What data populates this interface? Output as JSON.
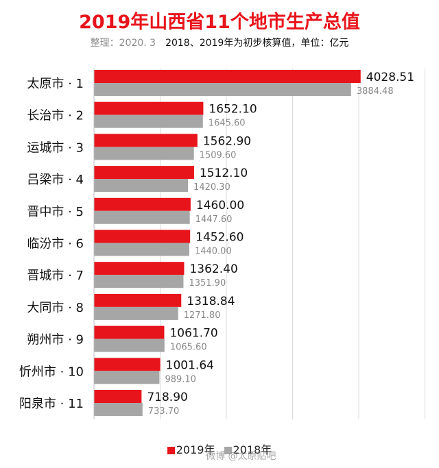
{
  "title": "2019年山西省11个地市生产总值",
  "subtitle_note": "整理：2020. 3",
  "subtitle": "2018、2019年为初步核算值，单位：亿元",
  "watermark": "微博 @太原贴吧",
  "colors": {
    "series_2019": "#e8141b",
    "series_2018": "#a6a6a6",
    "grid": "#d9d9d9",
    "title": "#e8141b"
  },
  "chart_data": {
    "type": "bar",
    "orientation": "horizontal",
    "categories": [
      "太原市 · 1",
      "长治市 · 2",
      "运城市 · 3",
      "吕梁市 · 4",
      "晋中市 · 5",
      "临汾市 · 6",
      "晋城市 · 7",
      "大同市 · 8",
      "朔州市 · 9",
      "忻州市 · 10",
      "阳泉市 · 11"
    ],
    "series": [
      {
        "name": "2019年",
        "values": [
          4028.51,
          1652.1,
          1562.9,
          1512.1,
          1460.0,
          1452.6,
          1362.4,
          1318.84,
          1061.7,
          1001.64,
          718.9
        ],
        "labels": [
          "4028.51",
          "1652.10",
          "1562.90",
          "1512.10",
          "1460.00",
          "1452.60",
          "1362.40",
          "1318.84",
          "1061.70",
          "1001.64",
          "718.90"
        ]
      },
      {
        "name": "2018年",
        "values": [
          3884.48,
          1645.6,
          1509.6,
          1420.3,
          1447.6,
          1440.0,
          1351.9,
          1271.8,
          1065.6,
          989.1,
          733.7
        ],
        "labels": [
          "3884.48",
          "1645.60",
          "1509.60",
          "1420.30",
          "1447.60",
          "1440.00",
          "1351.90",
          "1271.80",
          "1065.60",
          "989.10",
          "733.70"
        ]
      }
    ],
    "xlim": [
      0,
      5000
    ],
    "grid": true,
    "legend_position": "bottom"
  }
}
